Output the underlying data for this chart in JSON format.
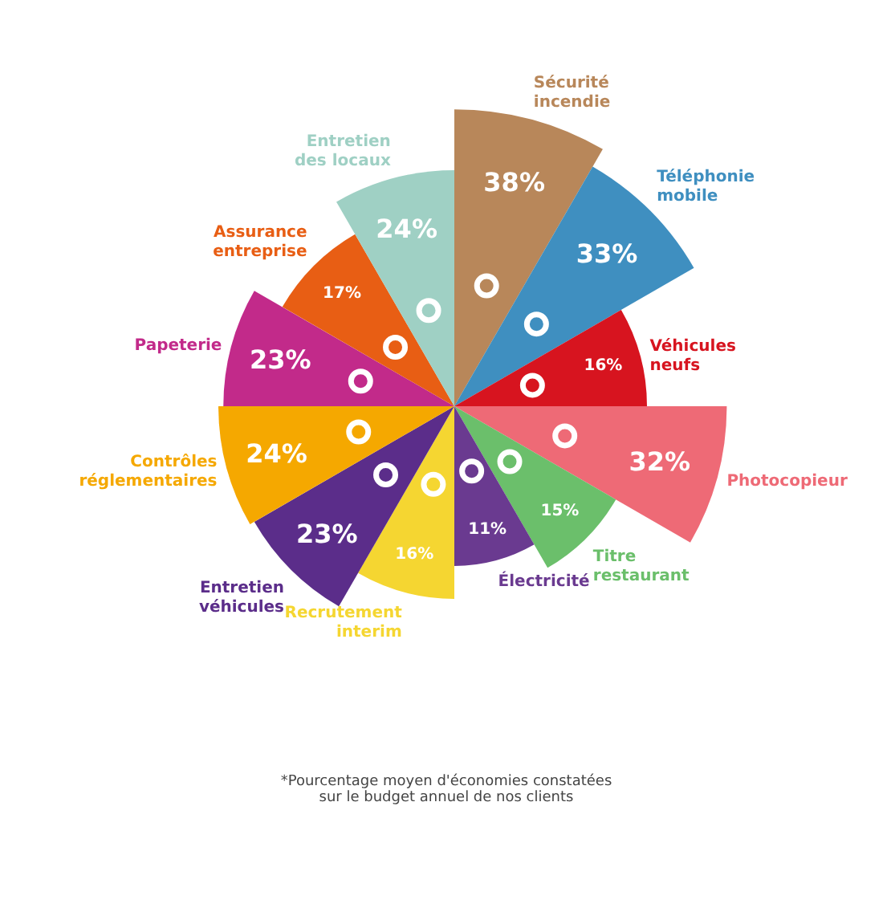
{
  "chart_data": {
    "type": "other",
    "categories": [
      "Sécurité incendie",
      "Téléphonie mobile",
      "Véhicules neufs",
      "Photocopieur",
      "Titre restaurant",
      "Électricité",
      "Recrutement interim",
      "Entretien véhicules",
      "Contrôles réglementaires",
      "Papeterie",
      "Assurance entreprise",
      "Entretien des locaux"
    ],
    "values": [
      38,
      33,
      16,
      32,
      15,
      11,
      16,
      23,
      24,
      23,
      17,
      24
    ],
    "value_labels": [
      "38%",
      "33%",
      "16%",
      "32%",
      "15%",
      "11%",
      "16%",
      "23%",
      "24%",
      "23%",
      "17%",
      "24%"
    ],
    "colors": [
      "#b8875a",
      "#3f8fc0",
      "#d7141f",
      "#ee6a76",
      "#6bbf6b",
      "#6a3a90",
      "#f5d631",
      "#5b2d8a",
      "#f5a800",
      "#c22a8a",
      "#e85e14",
      "#9fd0c4"
    ],
    "annotations": [
      "*Pourcentage moyen d'économies constatées\nsur le budget annuel de nos clients"
    ]
  }
}
